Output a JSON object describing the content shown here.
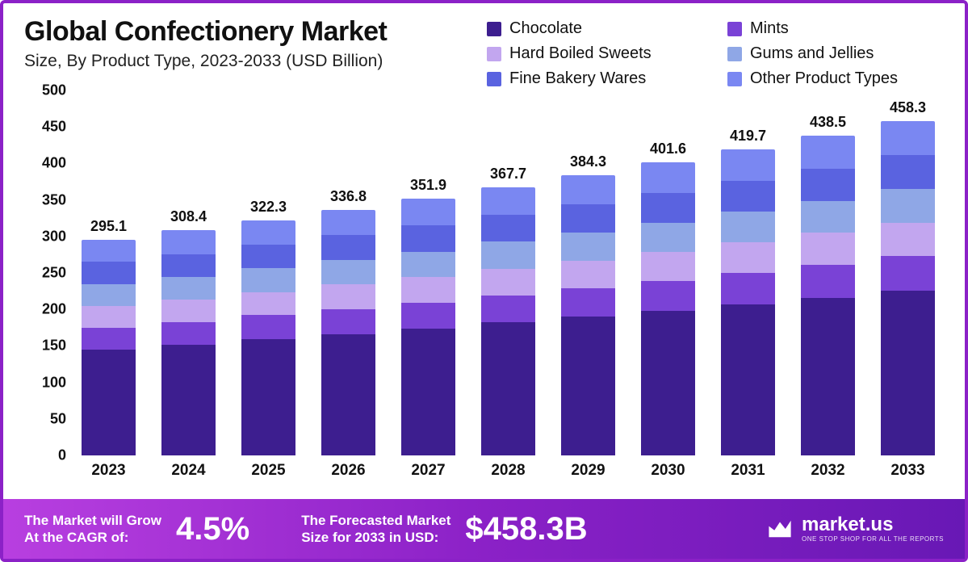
{
  "title": "Global Confectionery Market",
  "subtitle": "Size, By Product Type, 2023-2033 (USD Billion)",
  "chart": {
    "type": "bar-stacked",
    "y_max": 500,
    "y_min": 0,
    "y_step": 50,
    "y_ticks": [
      0,
      50,
      100,
      150,
      200,
      250,
      300,
      350,
      400,
      450,
      500
    ],
    "tick_fontsize": 18,
    "tick_fontweight": 700,
    "total_label_fontsize": 18,
    "bar_width_pct": 78,
    "background_color": "#ffffff",
    "categories": [
      "2023",
      "2024",
      "2025",
      "2026",
      "2027",
      "2028",
      "2029",
      "2030",
      "2031",
      "2032",
      "2033"
    ],
    "totals": [
      "295.1",
      "308.4",
      "322.3",
      "336.8",
      "351.9",
      "367.7",
      "384.3",
      "401.6",
      "419.7",
      "438.5",
      "458.3"
    ],
    "series": [
      {
        "name": "Chocolate",
        "color": "#3d1e8f"
      },
      {
        "name": "Mints",
        "color": "#7a42d6"
      },
      {
        "name": "Hard Boiled Sweets",
        "color": "#c2a6ef"
      },
      {
        "name": "Gums and Jellies",
        "color": "#8fa7e6"
      },
      {
        "name": "Fine Bakery Wares",
        "color": "#5a63e0"
      },
      {
        "name": "Other Product Types",
        "color": "#7a87f2"
      }
    ],
    "values": [
      [
        145,
        30,
        30,
        30,
        30,
        30.1
      ],
      [
        152,
        31,
        31,
        31,
        31,
        32.4
      ],
      [
        159,
        33,
        32,
        33,
        32,
        33.3
      ],
      [
        166,
        34,
        34,
        34,
        34,
        34.8
      ],
      [
        174,
        35,
        35,
        35,
        36,
        36.9
      ],
      [
        182,
        37,
        37,
        37,
        37,
        37.7
      ],
      [
        190,
        39,
        38,
        38,
        39,
        40.3
      ],
      [
        198,
        41,
        40,
        40,
        41,
        41.6
      ],
      [
        207,
        43,
        42,
        42,
        42,
        43.7
      ],
      [
        216,
        45,
        44,
        44,
        44,
        45.5
      ],
      [
        226,
        47,
        46,
        46,
        46,
        47.3
      ]
    ]
  },
  "legend": {
    "fontsize": 20,
    "items": [
      {
        "label": "Chocolate",
        "color": "#3d1e8f"
      },
      {
        "label": "Mints",
        "color": "#7a42d6"
      },
      {
        "label": "Hard Boiled Sweets",
        "color": "#c2a6ef"
      },
      {
        "label": "Gums and Jellies",
        "color": "#8fa7e6"
      },
      {
        "label": "Fine Bakery Wares",
        "color": "#5a63e0"
      },
      {
        "label": "Other Product Types",
        "color": "#7a87f2"
      }
    ]
  },
  "footer": {
    "background_gradient": [
      "#b83fe0",
      "#8b21c7",
      "#6818b5"
    ],
    "text_color": "#ffffff",
    "cagr_label": "The Market will Grow\nAt the CAGR of:",
    "cagr_value": "4.5%",
    "forecast_label": "The Forecasted Market\nSize for 2033 in USD:",
    "forecast_value": "$458.3B",
    "brand_name": "market.us",
    "brand_tag": "ONE STOP SHOP FOR ALL THE REPORTS"
  },
  "frame_border_color": "#8b21c7"
}
